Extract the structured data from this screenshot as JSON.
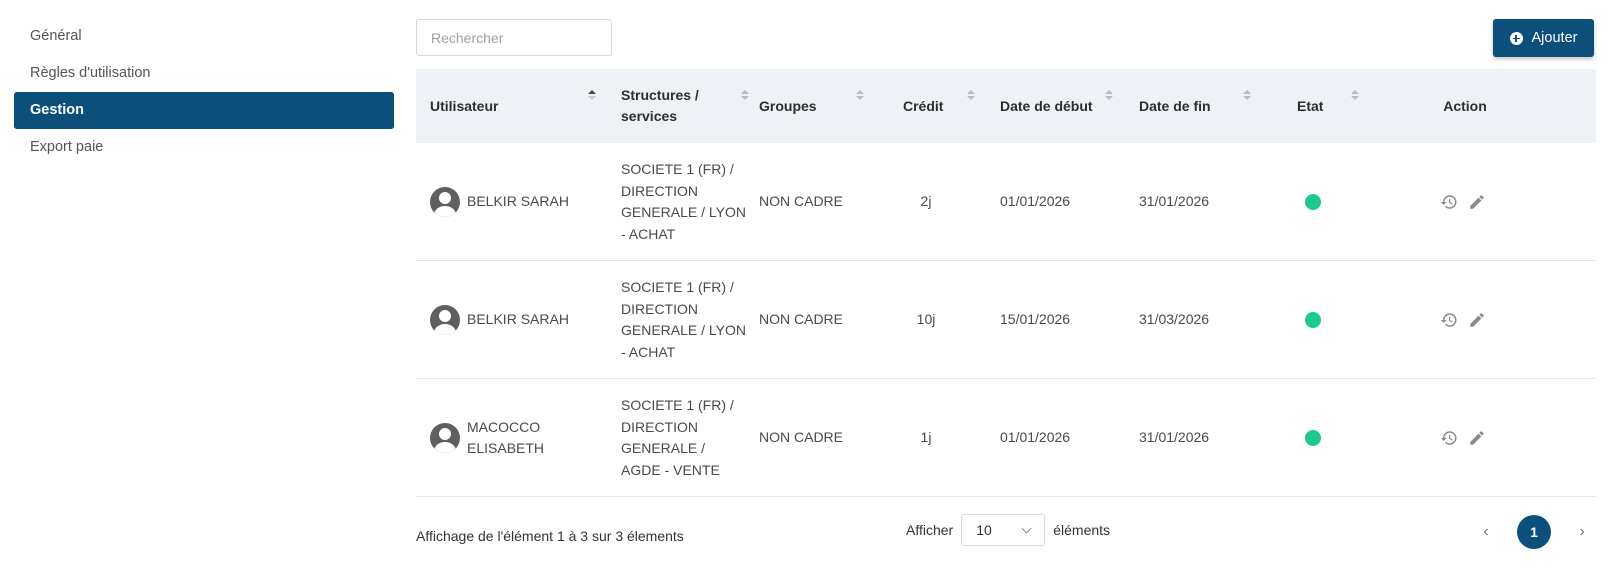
{
  "sidebar": {
    "items": [
      {
        "label": "Général",
        "active": false
      },
      {
        "label": "Règles d'utilisation",
        "active": false
      },
      {
        "label": "Gestion",
        "active": true
      },
      {
        "label": "Export paie",
        "active": false
      }
    ]
  },
  "search": {
    "placeholder": "Rechercher",
    "value": ""
  },
  "toolbar": {
    "add_label": "Ajouter"
  },
  "table": {
    "columns": [
      {
        "label": "Utilisateur",
        "sort": "asc"
      },
      {
        "label": "Structures / services",
        "sort": "none"
      },
      {
        "label": "Groupes",
        "sort": "none"
      },
      {
        "label": "Crédit",
        "sort": "none"
      },
      {
        "label": "Date de début",
        "sort": "none"
      },
      {
        "label": "Date de fin",
        "sort": "none"
      },
      {
        "label": "Etat",
        "sort": "none"
      },
      {
        "label": "Action"
      }
    ],
    "rows": [
      {
        "user": "BELKIR SARAH",
        "structure": "SOCIETE 1 (FR) / DIRECTION GENERALE / LYON - ACHAT",
        "group": "NON CADRE",
        "credit": "2j",
        "start": "01/01/2026",
        "end": "31/01/2026",
        "status": "active"
      },
      {
        "user": "BELKIR SARAH",
        "structure": "SOCIETE 1 (FR) / DIRECTION GENERALE / LYON - ACHAT",
        "group": "NON CADRE",
        "credit": "10j",
        "start": "15/01/2026",
        "end": "31/03/2026",
        "status": "active"
      },
      {
        "user": "MACOCCO ELISABETH",
        "structure": "SOCIETE 1 (FR) / DIRECTION GENERALE / AGDE - VENTE",
        "group": "NON CADRE",
        "credit": "1j",
        "start": "01/01/2026",
        "end": "31/01/2026",
        "status": "active"
      }
    ]
  },
  "footer": {
    "info": "Affichage de l'élément 1 à 3 sur 3 élements",
    "show_label": "Afficher",
    "page_size": "10",
    "elements_label": "éléments",
    "current_page": "1",
    "prev_symbol": "‹",
    "next_symbol": "›"
  },
  "colors": {
    "accent": "#0b4f7a",
    "status_active": "#1fc98e",
    "header_bg": "#eef1f5"
  }
}
